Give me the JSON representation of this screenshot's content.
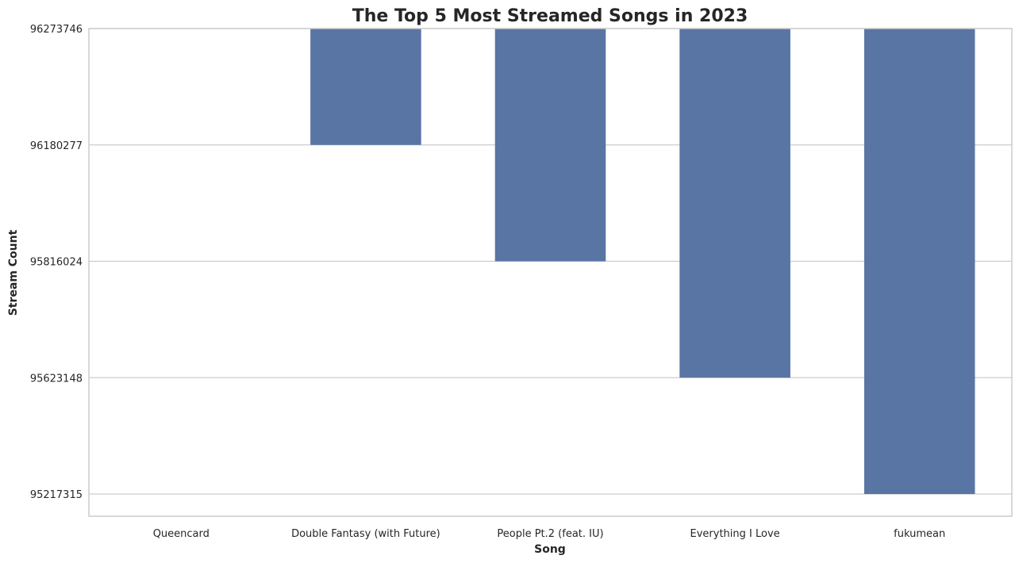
{
  "chart_data": {
    "type": "bar",
    "title": "The Top 5 Most Streamed Songs in 2023",
    "xlabel": "Song",
    "ylabel": "Stream Count",
    "categories": [
      "Queencard",
      "Double Fantasy (with Future)",
      "People Pt.2 (feat. IU)",
      "Everything I Love",
      "fukumean"
    ],
    "values": [
      96273746,
      96180277,
      95816024,
      95623148,
      95217315
    ],
    "y_ticks": [
      "96273746",
      "96180277",
      "95816024",
      "95623148",
      "95217315"
    ],
    "y_scale": "categorical-descending",
    "grid": true,
    "bar_color": "#5975a4"
  }
}
